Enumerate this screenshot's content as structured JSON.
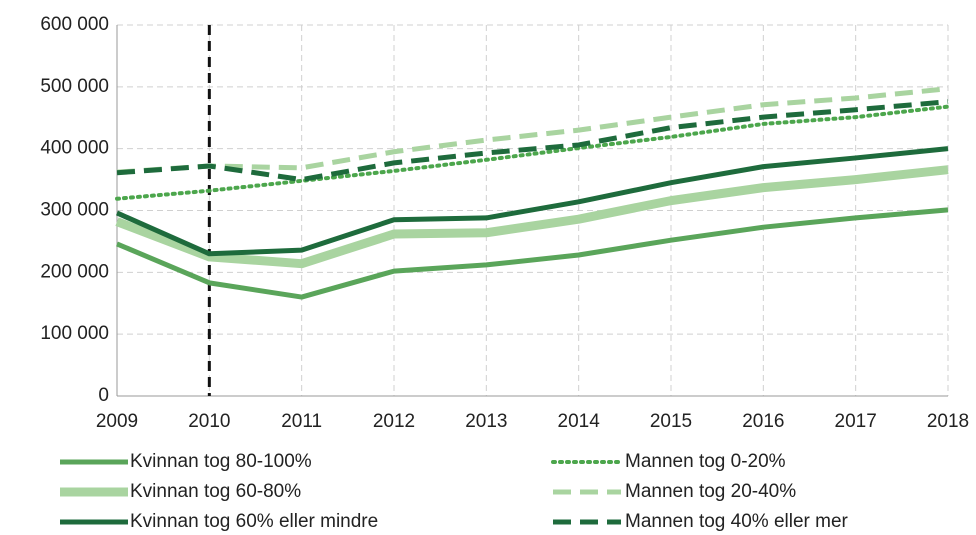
{
  "chart_data": {
    "type": "line",
    "x": [
      2009,
      2010,
      2011,
      2012,
      2013,
      2014,
      2015,
      2016,
      2017,
      2018
    ],
    "xlim": [
      2009,
      2018
    ],
    "xticks": [
      2009,
      2010,
      2011,
      2012,
      2013,
      2014,
      2015,
      2016,
      2017,
      2018
    ],
    "ylim": [
      0,
      600000
    ],
    "yticks": [
      0,
      {
        "value": 100000,
        "label": "100 000"
      },
      {
        "value": 200000,
        "label": "200 000"
      },
      {
        "value": 300000,
        "label": "300 000"
      },
      {
        "value": 400000,
        "label": "400 000"
      },
      {
        "value": 500000,
        "label": "500 000"
      },
      {
        "value": 600000,
        "label": "600 000"
      }
    ],
    "grid": true,
    "vline": 2010,
    "series": [
      {
        "name": "Kvinnan tog 80-100%",
        "color": "#5aa55a",
        "dash": "solid",
        "width": 5,
        "values": [
          246000,
          183000,
          160000,
          202000,
          212000,
          228000,
          252000,
          273000,
          288000,
          301000
        ]
      },
      {
        "name": "Mannen tog 0-20%",
        "color": "#4ca64c",
        "dash": "dotted",
        "width": 4,
        "values": [
          319000,
          332000,
          348000,
          364000,
          382000,
          401000,
          419000,
          440000,
          451000,
          468000
        ]
      },
      {
        "name": "Kvinnan tog 60-80%",
        "color": "#a9d4a0",
        "dash": "solid",
        "width": 9,
        "values": [
          282000,
          225000,
          214000,
          262000,
          264000,
          286000,
          316000,
          337000,
          350000,
          366000
        ]
      },
      {
        "name": "Mannen tog 20-40%",
        "color": "#a9d4a0",
        "dash": "dashed",
        "width": 5,
        "values": [
          362000,
          372000,
          369000,
          395000,
          414000,
          430000,
          451000,
          471000,
          482000,
          497000
        ]
      },
      {
        "name": "Kvinnan tog 60% eller mindre",
        "color": "#1e6b3c",
        "dash": "solid",
        "width": 5,
        "values": [
          296000,
          230000,
          236000,
          285000,
          288000,
          314000,
          345000,
          371000,
          385000,
          400000
        ]
      },
      {
        "name": "Mannen tog 40% eller mer",
        "color": "#1e6b3c",
        "dash": "dashed",
        "width": 5,
        "values": [
          361000,
          372000,
          350000,
          377000,
          393000,
          406000,
          434000,
          451000,
          463000,
          476000
        ]
      }
    ]
  }
}
